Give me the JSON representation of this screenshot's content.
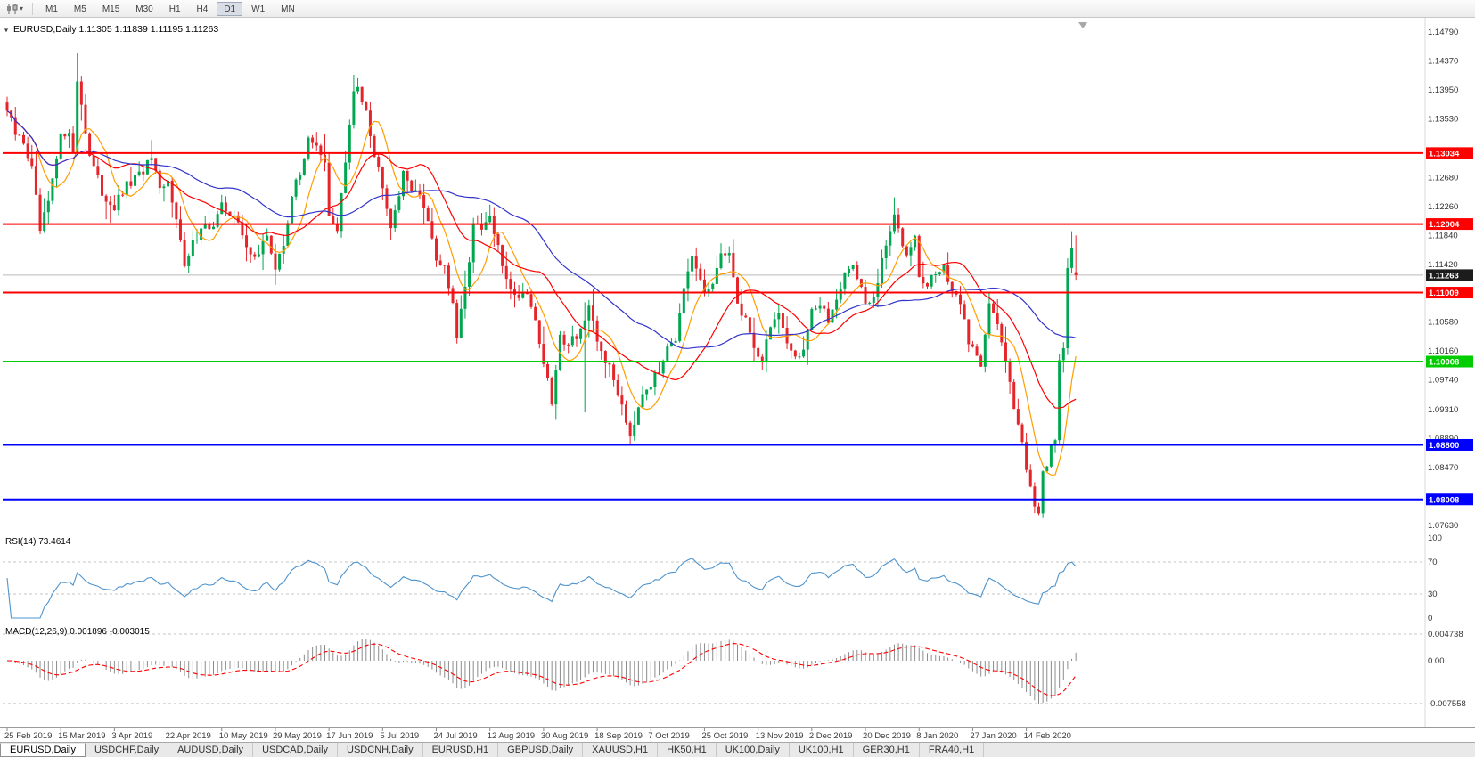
{
  "toolbar": {
    "timeframes": [
      "M1",
      "M5",
      "M15",
      "M30",
      "H1",
      "H4",
      "D1",
      "W1",
      "MN"
    ],
    "active_timeframe": "D1"
  },
  "chart": {
    "title_line": "EURUSD,Daily  1.11305 1.11839 1.11195 1.11263",
    "symbol": "EURUSD",
    "period": "Daily"
  },
  "indicators": {
    "rsi_label": "RSI(14) 73.4614",
    "macd_label": "MACD(12,26,9) 0.001896 -0.003015"
  },
  "tabs": {
    "active": "EURUSD,Daily",
    "items": [
      "EURUSD,Daily",
      "USDCHF,Daily",
      "AUDUSD,Daily",
      "USDCAD,Daily",
      "USDCNH,Daily",
      "EURUSD,H1",
      "GBPUSD,Daily",
      "XAUUSD,H1",
      "HK50,H1",
      "UK100,Daily",
      "UK100,H1",
      "GER30,H1",
      "FRA40,H1"
    ],
    "timeframe_of_active": "D1"
  },
  "chart_data": {
    "type": "candlestick",
    "symbol": "EURUSD",
    "timeframe": "Daily",
    "current_ohlc": {
      "open": 1.11305,
      "high": 1.11839,
      "low": 1.11195,
      "close": 1.11263
    },
    "n": 260,
    "x_step": 4.63,
    "noise": 0.0016,
    "wick": 0.003,
    "price_axis": {
      "top": 1.1479,
      "bottom": 1.0763,
      "ticks": [
        "1.14790",
        "1.14370",
        "1.13950",
        "1.13530",
        "1.12680",
        "1.12260",
        "1.11840",
        "1.11420",
        "1.10580",
        "1.10160",
        "1.09740",
        "1.09310",
        "1.08890",
        "1.08470",
        "1.07630"
      ]
    },
    "levels": [
      {
        "label": "1.13034",
        "price": 1.13034,
        "color": "#ff0000"
      },
      {
        "label": "1.12004",
        "price": 1.12004,
        "color": "#ff0000"
      },
      {
        "label": "1.11009",
        "price": 1.11009,
        "color": "#ff0000"
      },
      {
        "label": "1.10008",
        "price": 1.10008,
        "color": "#00cc00"
      },
      {
        "label": "1.08800",
        "price": 1.088,
        "color": "#0000ff"
      },
      {
        "label": "1.08008",
        "price": 1.08008,
        "color": "#0000ff"
      }
    ],
    "current_price": {
      "label": "1.11263",
      "price": 1.11263,
      "box_color": "#1c1c1c"
    },
    "dates": [
      "25 Feb 2019",
      "15 Mar 2019",
      "3 Apr 2019",
      "22 Apr 2019",
      "10 May 2019",
      "29 May 2019",
      "17 Jun 2019",
      "5 Jul 2019",
      "24 Jul 2019",
      "12 Aug 2019",
      "30 Aug 2019",
      "18 Sep 2019",
      "7 Oct 2019",
      "25 Oct 2019",
      "13 Nov 2019",
      "2 Dec 2019",
      "20 Dec 2019",
      "8 Jan 2020",
      "27 Jan 2020",
      "14 Feb 2020"
    ],
    "date_label_step": 13,
    "colors": {
      "up": "#00a650",
      "down": "#e6252b",
      "ma_fast": "#ff9d00",
      "ma_mid": "#ff0000",
      "ma_slow": "#3333cc",
      "bid_line": "#b9b9b9",
      "rsi": "#4f94cd",
      "macd_hist": "#8c8c8c",
      "macd_signal": "#ff0000",
      "grid_dash": "#c4c4c4"
    },
    "moving_averages": [
      {
        "period": 8,
        "color_key": "ma_fast"
      },
      {
        "period": 20,
        "color_key": "ma_mid"
      },
      {
        "period": 45,
        "color_key": "ma_slow"
      }
    ],
    "rsi": {
      "period": 14,
      "last_value": 73.4614,
      "axis": [
        "100",
        "70",
        "30",
        "0"
      ],
      "dashed_levels": [
        70,
        30
      ]
    },
    "macd": {
      "fast": 12,
      "slow": 26,
      "signal": 9,
      "last_main": 0.001896,
      "last_signal": -0.003015,
      "axis_max": "0.004738",
      "axis_zero": "0.00",
      "axis_min": "-0.007558"
    },
    "anchors": [
      [
        0,
        1.1365
      ],
      [
        2,
        1.133
      ],
      [
        4,
        1.132
      ],
      [
        6,
        1.128
      ],
      [
        8,
        1.119
      ],
      [
        10,
        1.123
      ],
      [
        13,
        1.1325
      ],
      [
        15,
        1.134
      ],
      [
        16,
        1.13
      ],
      [
        17,
        1.141
      ],
      [
        18,
        1.1375
      ],
      [
        20,
        1.13
      ],
      [
        23,
        1.1245
      ],
      [
        26,
        1.1225
      ],
      [
        29,
        1.1255
      ],
      [
        32,
        1.127
      ],
      [
        35,
        1.1295
      ],
      [
        37,
        1.1245
      ],
      [
        39,
        1.126
      ],
      [
        41,
        1.1215
      ],
      [
        43,
        1.1135
      ],
      [
        45,
        1.117
      ],
      [
        47,
        1.12
      ],
      [
        50,
        1.1195
      ],
      [
        52,
        1.1225
      ],
      [
        55,
        1.1215
      ],
      [
        58,
        1.1165
      ],
      [
        61,
        1.1155
      ],
      [
        63,
        1.1185
      ],
      [
        65,
        1.1135
      ],
      [
        67,
        1.117
      ],
      [
        69,
        1.1245
      ],
      [
        71,
        1.127
      ],
      [
        73,
        1.133
      ],
      [
        75,
        1.131
      ],
      [
        77,
        1.1285
      ],
      [
        78,
        1.121
      ],
      [
        80,
        1.1195
      ],
      [
        82,
        1.129
      ],
      [
        84,
        1.139
      ],
      [
        85,
        1.14
      ],
      [
        87,
        1.137
      ],
      [
        89,
        1.13
      ],
      [
        91,
        1.126
      ],
      [
        93,
        1.12
      ],
      [
        96,
        1.127
      ],
      [
        99,
        1.125
      ],
      [
        102,
        1.121
      ],
      [
        104,
        1.115
      ],
      [
        106,
        1.114
      ],
      [
        108,
        1.108
      ],
      [
        109,
        1.1035
      ],
      [
        111,
        1.1105
      ],
      [
        113,
        1.12
      ],
      [
        115,
        1.119
      ],
      [
        117,
        1.121
      ],
      [
        120,
        1.114
      ],
      [
        123,
        1.1095
      ],
      [
        126,
        1.1105
      ],
      [
        128,
        1.106
      ],
      [
        130,
        1.1
      ],
      [
        132,
        1.094
      ],
      [
        134,
        1.1035
      ],
      [
        136,
        1.103
      ],
      [
        138,
        1.104
      ],
      [
        140,
        1.106
      ],
      [
        141,
        1.1075
      ],
      [
        143,
        1.103
      ],
      [
        146,
        1.099
      ],
      [
        149,
        1.094
      ],
      [
        151,
        1.0895
      ],
      [
        154,
        1.096
      ],
      [
        156,
        1.097
      ],
      [
        158,
        1.0985
      ],
      [
        160,
        1.103
      ],
      [
        162,
        1.1035
      ],
      [
        164,
        1.11
      ],
      [
        166,
        1.115
      ],
      [
        169,
        1.11
      ],
      [
        171,
        1.1115
      ],
      [
        173,
        1.115
      ],
      [
        175,
        1.1165
      ],
      [
        177,
        1.108
      ],
      [
        179,
        1.1065
      ],
      [
        181,
        1.102
      ],
      [
        183,
        1.1005
      ],
      [
        185,
        1.1055
      ],
      [
        187,
        1.107
      ],
      [
        189,
        1.102
      ],
      [
        191,
        1.101
      ],
      [
        193,
        1.102
      ],
      [
        195,
        1.108
      ],
      [
        197,
        1.108
      ],
      [
        199,
        1.106
      ],
      [
        201,
        1.1095
      ],
      [
        203,
        1.113
      ],
      [
        205,
        1.114
      ],
      [
        207,
        1.111
      ],
      [
        208,
        1.108
      ],
      [
        210,
        1.109
      ],
      [
        213,
        1.117
      ],
      [
        215,
        1.121
      ],
      [
        217,
        1.1175
      ],
      [
        218,
        1.116
      ],
      [
        220,
        1.119
      ],
      [
        221,
        1.112
      ],
      [
        223,
        1.111
      ],
      [
        225,
        1.113
      ],
      [
        227,
        1.114
      ],
      [
        229,
        1.1095
      ],
      [
        231,
        1.109
      ],
      [
        233,
        1.103
      ],
      [
        234,
        1.102
      ],
      [
        236,
        1.1
      ],
      [
        238,
        1.109
      ],
      [
        240,
        1.105
      ],
      [
        242,
        1.1
      ],
      [
        244,
        1.094
      ],
      [
        246,
        1.089
      ],
      [
        247,
        1.084
      ],
      [
        249,
        1.0795
      ],
      [
        250,
        1.0785
      ],
      [
        251,
        1.0845
      ],
      [
        252,
        1.0855
      ],
      [
        253,
        1.088
      ],
      [
        254,
        1.088
      ],
      [
        255,
        1.0995
      ],
      [
        256,
        1.1025
      ],
      [
        257,
        1.1135
      ],
      [
        258,
        1.117
      ],
      [
        259,
        1.11263
      ]
    ],
    "overrides": [
      {
        "i": 17,
        "h": 1.1448
      },
      {
        "i": 85,
        "h": 1.1412
      },
      {
        "i": 109,
        "l": 1.1027
      },
      {
        "i": 140,
        "h": 1.1087,
        "l": 1.0927
      },
      {
        "i": 151,
        "l": 1.0879
      },
      {
        "i": 183,
        "l": 1.0989
      },
      {
        "i": 215,
        "h": 1.1239
      },
      {
        "i": 250,
        "l": 1.0778
      },
      {
        "i": 258,
        "h": 1.119
      },
      {
        "i": 259,
        "o": 1.11305,
        "h": 1.11839,
        "l": 1.11195,
        "c": 1.11263
      }
    ]
  }
}
